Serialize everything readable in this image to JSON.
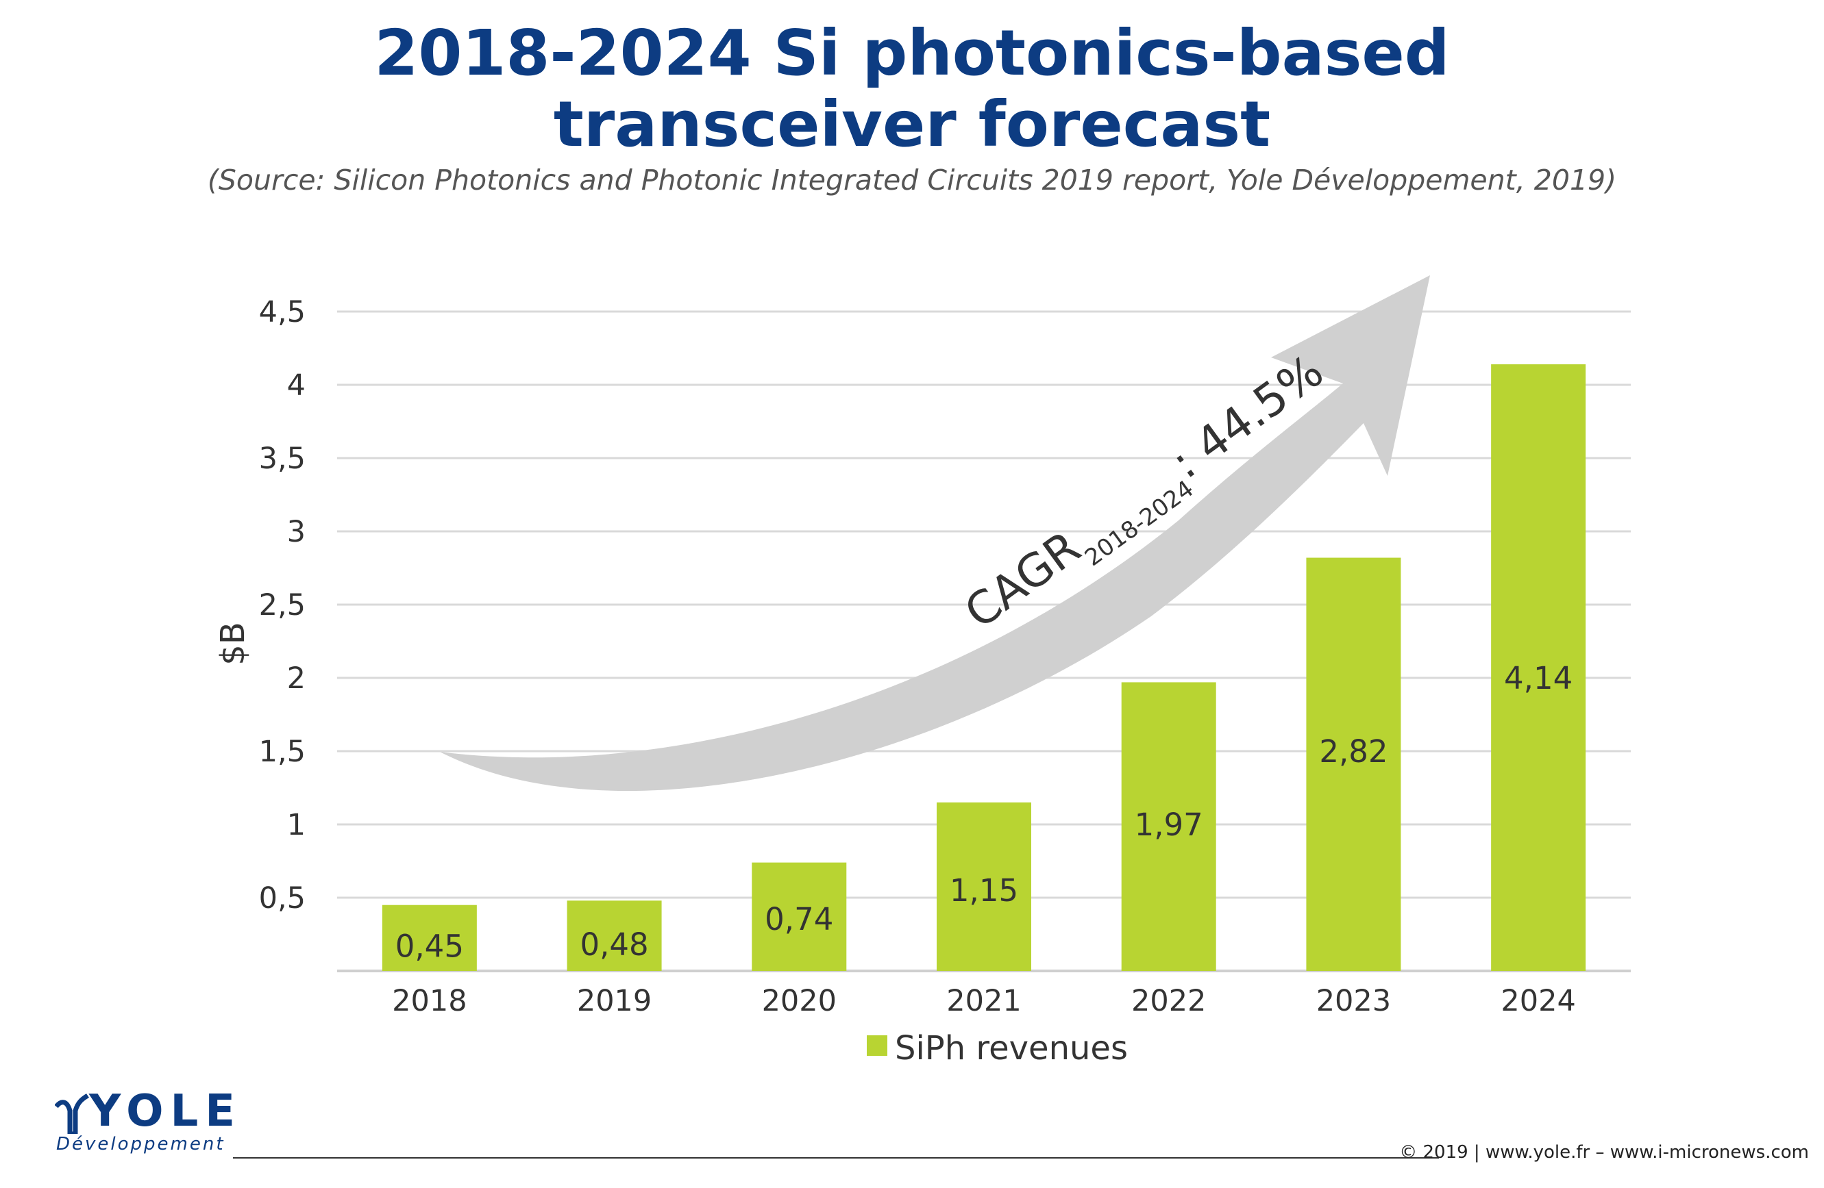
{
  "title_line1": "2018-2024 Si photonics-based",
  "title_line2": "transceiver forecast",
  "source": "(Source: Silicon Photonics and Photonic Integrated Circuits 2019 report, Yole Développement, 2019)",
  "colors": {
    "title": "#0d3c82",
    "bar": "#b8d432",
    "grid": "#d9d9d9",
    "arrow": "#d0d0d0",
    "text": "#333333"
  },
  "chart_data": {
    "type": "bar",
    "categories": [
      "2018",
      "2019",
      "2020",
      "2021",
      "2022",
      "2023",
      "2024"
    ],
    "series": [
      {
        "name": "SiPh revenues",
        "values": [
          0.45,
          0.48,
          0.74,
          1.15,
          1.97,
          2.82,
          4.14
        ]
      }
    ],
    "value_labels": [
      "0,45",
      "0,48",
      "0,74",
      "1,15",
      "1,97",
      "2,82",
      "4,14"
    ],
    "y_ticks": [
      0.5,
      1,
      1.5,
      2,
      2.5,
      3,
      3.5,
      4,
      4.5
    ],
    "y_tick_labels": [
      "0,5",
      "1",
      "1,5",
      "2",
      "2,5",
      "3",
      "3,5",
      "4",
      "4,5"
    ],
    "ylim": [
      0,
      4.5
    ],
    "ylabel": "$B",
    "xlabel": "",
    "grid": true,
    "legend_position": "bottom",
    "annotation": {
      "prefix": "CAGR",
      "subscript": "2018-2024",
      "suffix": ": 44.5%"
    }
  },
  "logo": {
    "name": "YOLE",
    "sub": "Développement"
  },
  "footer": "© 2019 | www.yole.fr – www.i-micronews.com"
}
